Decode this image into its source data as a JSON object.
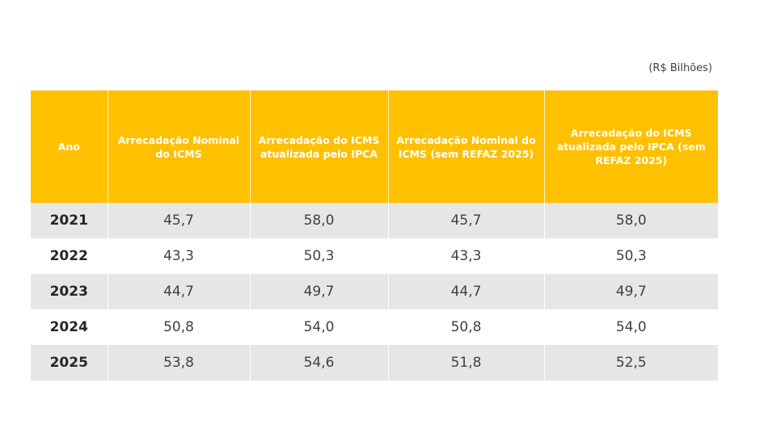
{
  "unit_label": "(R$ Bilhões)",
  "table": {
    "headers": [
      "Ano",
      "Arrecadação Nominal do ICMS",
      "Arrecadação do ICMS atualizada pelo IPCA",
      "Arrecadação Nominal do ICMS (sem REFAZ 2025)",
      "Arrecadação do ICMS atualizada pelo IPCA (sem REFAZ 2025)"
    ],
    "rows": [
      [
        "2021",
        "45,7",
        "58,0",
        "45,7",
        "58,0"
      ],
      [
        "2022",
        "43,3",
        "50,3",
        "43,3",
        "50,3"
      ],
      [
        "2023",
        "44,7",
        "49,7",
        "44,7",
        "49,7"
      ],
      [
        "2024",
        "50,8",
        "54,0",
        "50,8",
        "54,0"
      ],
      [
        "2025",
        "53,8",
        "54,6",
        "51,8",
        "52,5"
      ]
    ]
  },
  "colors": {
    "header": "#ffc000",
    "stripe": "#e6e6e6"
  }
}
